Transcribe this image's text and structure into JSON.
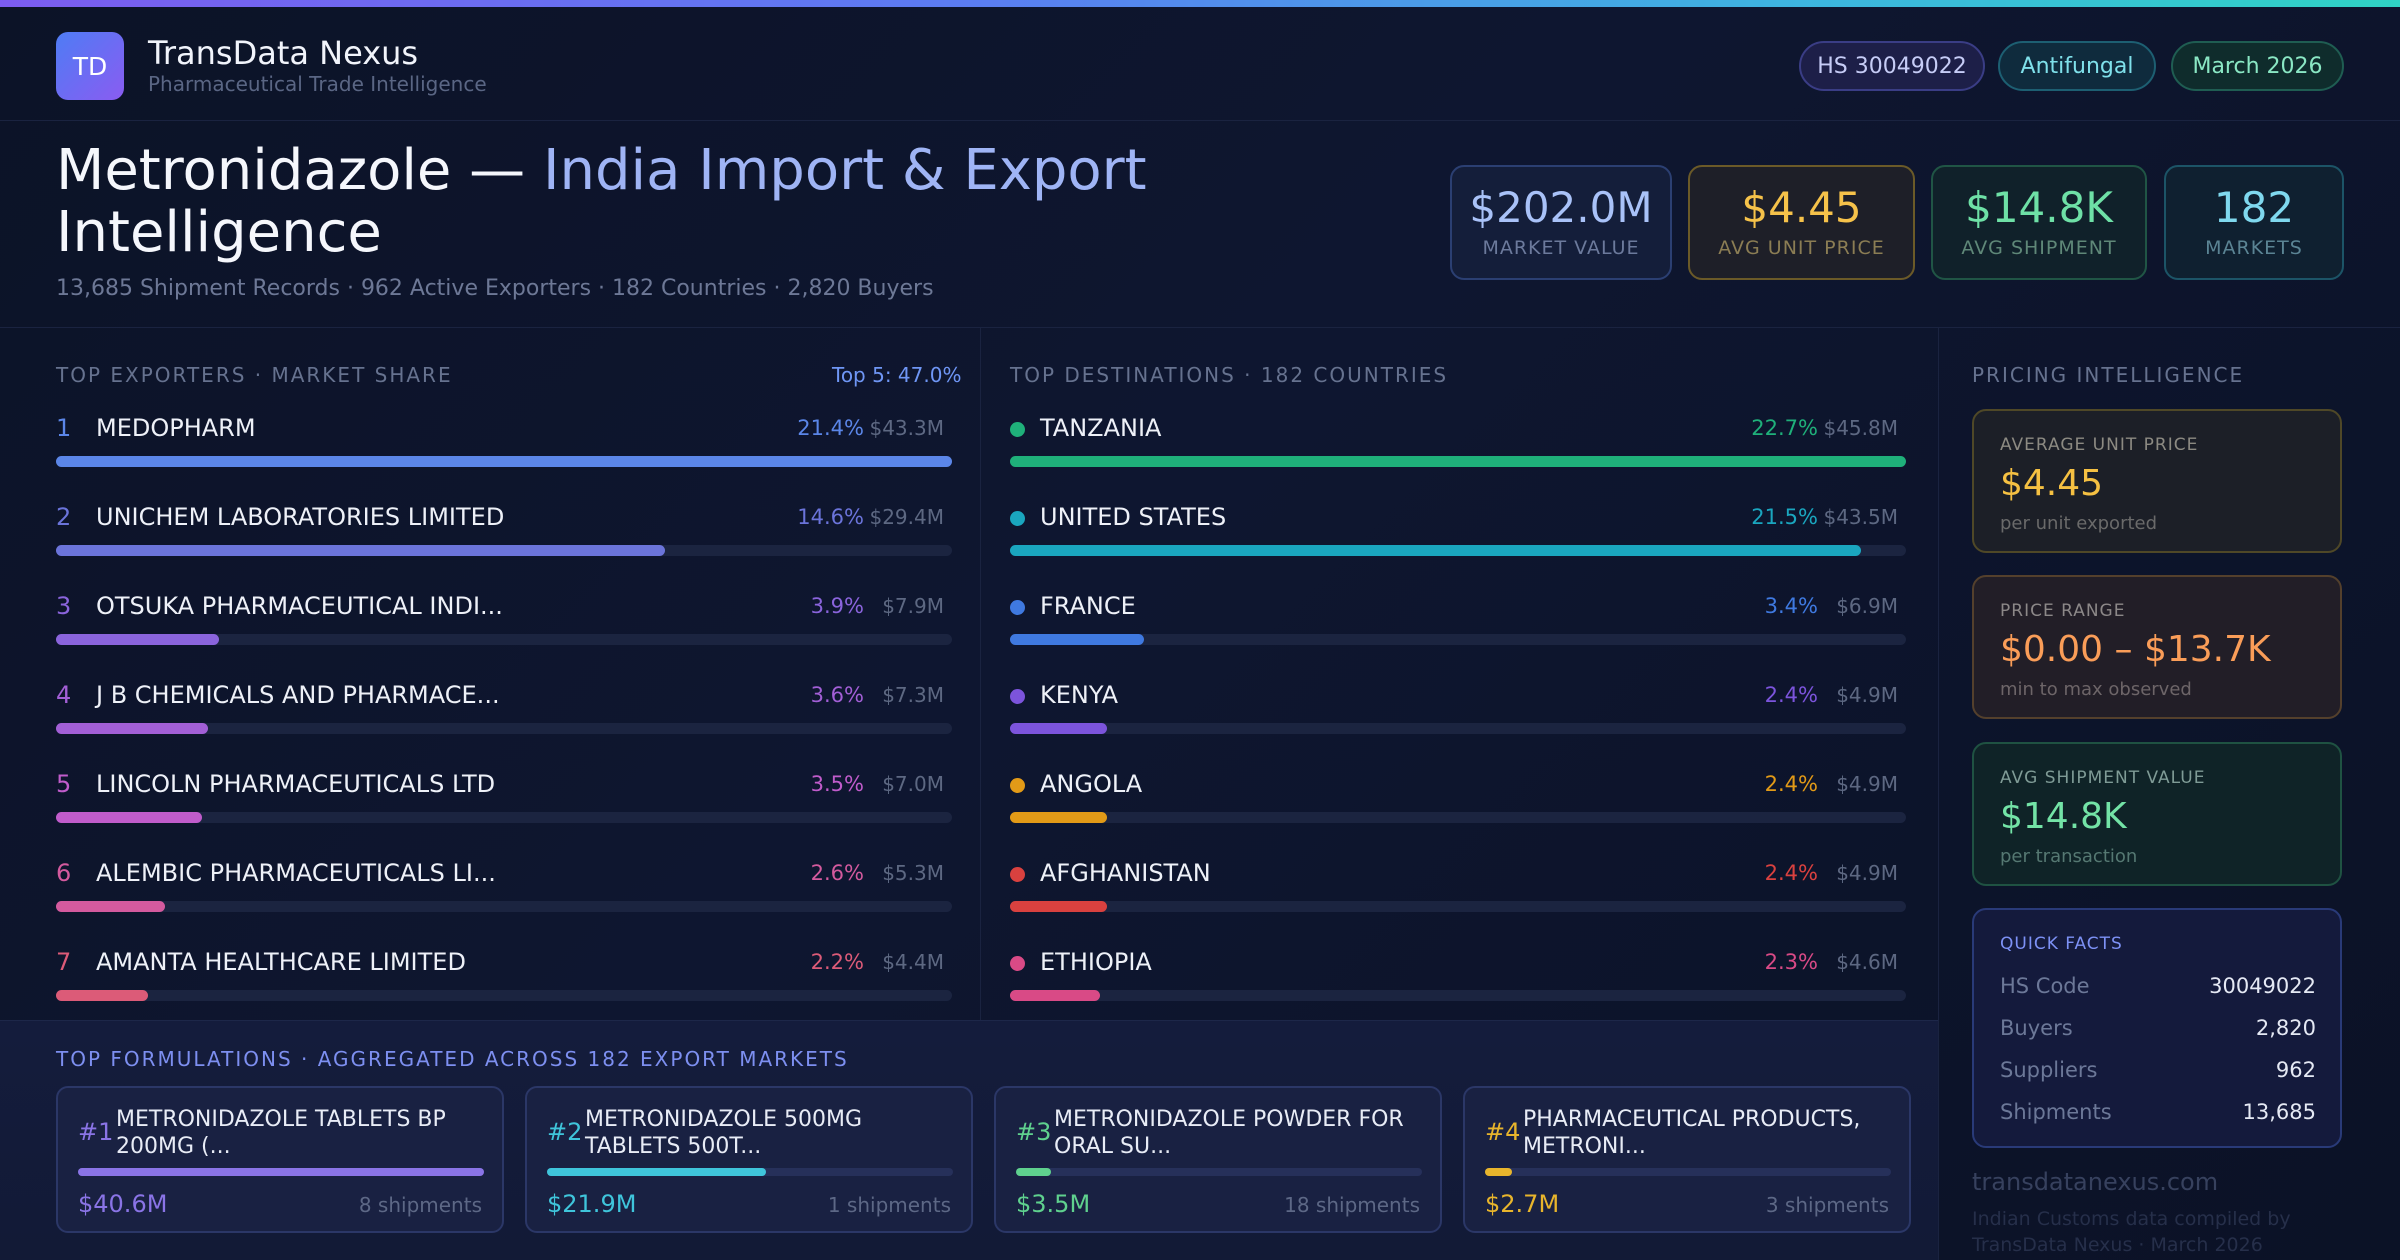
{
  "brand": {
    "initials": "TD",
    "name": "TransData Nexus",
    "tagline": "Pharmaceutical Trade Intelligence"
  },
  "pills": {
    "hs": "HS 30049022",
    "category": "Antifungal",
    "period": "March 2026"
  },
  "hero": {
    "title_main": "Metronidazole — ",
    "title_accent": "India Import & Export",
    "title_tail": " Intelligence",
    "subtitle": "13,685 Shipment Records · 962 Active Exporters · 182 Countries · 2,820 Buyers"
  },
  "kpis": [
    {
      "value": "$202.0M",
      "label": "MARKET VALUE"
    },
    {
      "value": "$4.45",
      "label": "AVG UNIT PRICE"
    },
    {
      "value": "$14.8K",
      "label": "AVG SHIPMENT"
    },
    {
      "value": "182",
      "label": "MARKETS"
    }
  ],
  "exporters": {
    "label": "TOP EXPORTERS · MARKET SHARE",
    "top5": "Top 5: 47.0%",
    "items": [
      {
        "rank": "1",
        "name": "MEDOPHARM",
        "pct": "21.4%",
        "amount": "$43.3M",
        "share": 100,
        "color": "#5b86e8"
      },
      {
        "rank": "2",
        "name": "UNICHEM LABORATORIES LIMITED",
        "pct": "14.6%",
        "amount": "$29.4M",
        "share": 68,
        "color": "#6b74da"
      },
      {
        "rank": "3",
        "name": "OTSUKA PHARMACEUTICAL INDI...",
        "pct": "3.9%",
        "amount": "$7.9M",
        "share": 18.2,
        "color": "#8a64dc"
      },
      {
        "rank": "4",
        "name": "J B CHEMICALS AND PHARMACE...",
        "pct": "3.6%",
        "amount": "$7.3M",
        "share": 17,
        "color": "#a25fd6"
      },
      {
        "rank": "5",
        "name": "LINCOLN PHARMACEUTICALS LTD",
        "pct": "3.5%",
        "amount": "$7.0M",
        "share": 16.3,
        "color": "#c05ccb"
      },
      {
        "rank": "6",
        "name": "ALEMBIC PHARMACEUTICALS LI...",
        "pct": "2.6%",
        "amount": "$5.3M",
        "share": 12.2,
        "color": "#d45a9e"
      },
      {
        "rank": "7",
        "name": "AMANTA HEALTHCARE LIMITED",
        "pct": "2.2%",
        "amount": "$4.4M",
        "share": 10.3,
        "color": "#dc5b78"
      }
    ]
  },
  "destinations": {
    "label": "TOP DESTINATIONS · 182 COUNTRIES",
    "items": [
      {
        "name": "TANZANIA",
        "pct": "22.7%",
        "amount": "$45.8M",
        "share": 100,
        "color": "#1fb07a"
      },
      {
        "name": "UNITED STATES",
        "pct": "21.5%",
        "amount": "$43.5M",
        "share": 95,
        "color": "#1aa6bf"
      },
      {
        "name": "FRANCE",
        "pct": "3.4%",
        "amount": "$6.9M",
        "share": 15,
        "color": "#3f79e0"
      },
      {
        "name": "KENYA",
        "pct": "2.4%",
        "amount": "$4.9M",
        "share": 10.8,
        "color": "#7c54dc"
      },
      {
        "name": "ANGOLA",
        "pct": "2.4%",
        "amount": "$4.9M",
        "share": 10.8,
        "color": "#e29a17"
      },
      {
        "name": "AFGHANISTAN",
        "pct": "2.4%",
        "amount": "$4.9M",
        "share": 10.8,
        "color": "#d9413f"
      },
      {
        "name": "ETHIOPIA",
        "pct": "2.3%",
        "amount": "$4.6M",
        "share": 10.1,
        "color": "#d94a86"
      }
    ]
  },
  "pricing": {
    "label": "PRICING INTELLIGENCE",
    "cards": [
      {
        "title": "AVERAGE UNIT PRICE",
        "value": "$4.45",
        "sub": "per unit exported"
      },
      {
        "title": "PRICE RANGE",
        "value": "$0.00 – $13.7K",
        "sub": "min to max observed"
      },
      {
        "title": "AVG SHIPMENT VALUE",
        "value": "$14.8K",
        "sub": "per transaction"
      }
    ],
    "quick_facts": {
      "title": "QUICK FACTS",
      "items": [
        {
          "label": "HS Code",
          "value": "30049022"
        },
        {
          "label": "Buyers",
          "value": "2,820"
        },
        {
          "label": "Suppliers",
          "value": "962"
        },
        {
          "label": "Shipments",
          "value": "13,685"
        }
      ]
    },
    "footer_site": "transdatanexus.com",
    "footer_note": "Indian Customs data compiled by TransData Nexus · March 2026"
  },
  "formulations": {
    "label": "TOP FORMULATIONS · AGGREGATED ACROSS 182 EXPORT MARKETS",
    "items": [
      {
        "rank": "#1",
        "name": "METRONIDAZOLE TABLETS BP 200MG (...",
        "value": "$40.6M",
        "shipments": "8 shipments",
        "share": 100,
        "color": "#8a74e6"
      },
      {
        "rank": "#2",
        "name": "METRONIDAZOLE 500MG TABLETS 500T...",
        "value": "$21.9M",
        "shipments": "1 shipments",
        "share": 54,
        "color": "#3fc5db"
      },
      {
        "rank": "#3",
        "name": "METRONIDAZOLE POWDER FOR ORAL SU...",
        "value": "$3.5M",
        "shipments": "18 shipments",
        "share": 8.6,
        "color": "#5fd18e"
      },
      {
        "rank": "#4",
        "name": "PHARMACEUTICAL PRODUCTS, METRONI...",
        "value": "$2.7M",
        "shipments": "3 shipments",
        "share": 6.6,
        "color": "#e8b52c"
      }
    ]
  }
}
